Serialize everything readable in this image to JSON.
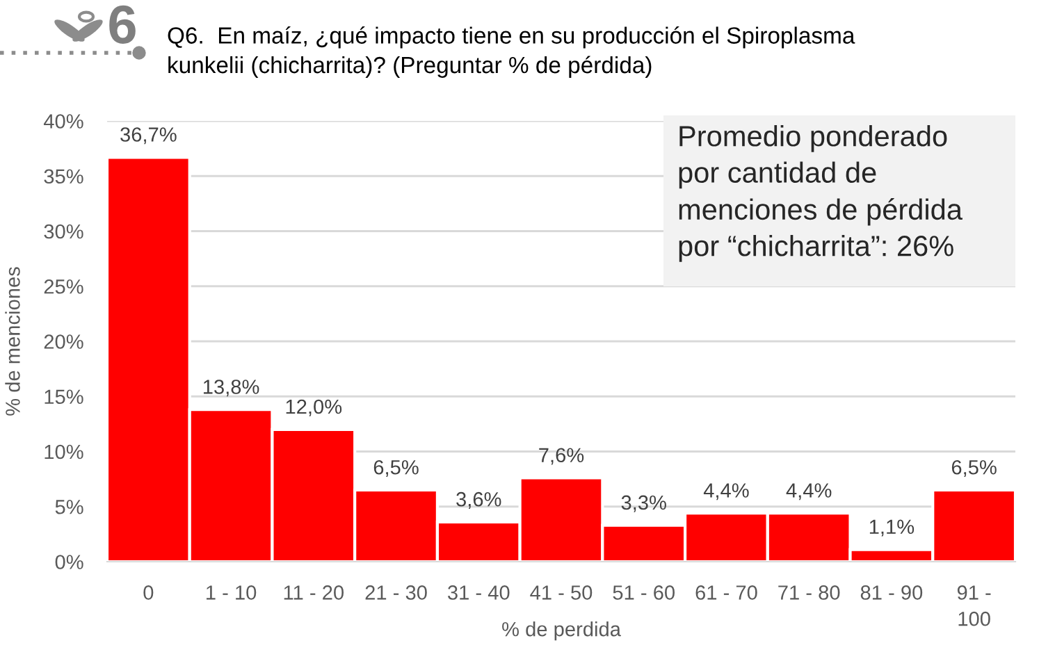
{
  "chart_data": {
    "type": "bar",
    "title": "Q6.  En maíz, ¿qué impacto tiene en su producción el Spiroplasma\nkunkelii (chicharrita)? (Preguntar % de pérdida)",
    "xlabel": "% de perdida",
    "ylabel": "% de menciones",
    "categories": [
      "0",
      "1 - 10",
      "11 - 20",
      "21 - 30",
      "31 - 40",
      "41 - 50",
      "51 - 60",
      "61 - 70",
      "71 - 80",
      "81 - 90",
      "91 - 100"
    ],
    "values": [
      36.7,
      13.8,
      12.0,
      6.5,
      3.6,
      7.6,
      3.3,
      4.4,
      4.4,
      1.1,
      6.5
    ],
    "value_labels": [
      "36,7%",
      "13,8%",
      "12,0%",
      "6,5%",
      "3,6%",
      "7,6%",
      "3,3%",
      "4,4%",
      "4,4%",
      "1,1%",
      "6,5%"
    ],
    "color": "#ff0000",
    "ylim": [
      0,
      40
    ],
    "yticks": [
      {
        "value": 0,
        "label": "0%"
      },
      {
        "value": 5,
        "label": "5%"
      },
      {
        "value": 10,
        "label": "10%"
      },
      {
        "value": 15,
        "label": "15%"
      },
      {
        "value": 20,
        "label": "20%"
      },
      {
        "value": 25,
        "label": "25%"
      },
      {
        "value": 30,
        "label": "30%"
      },
      {
        "value": 35,
        "label": "35%"
      },
      {
        "value": 40,
        "label": "40%"
      }
    ],
    "grid": "y",
    "annotations": [
      "Promedio ponderado\npor cantidad de\nmenciones de pérdida\npor “chicharrita”: 26%",
      "6"
    ]
  }
}
